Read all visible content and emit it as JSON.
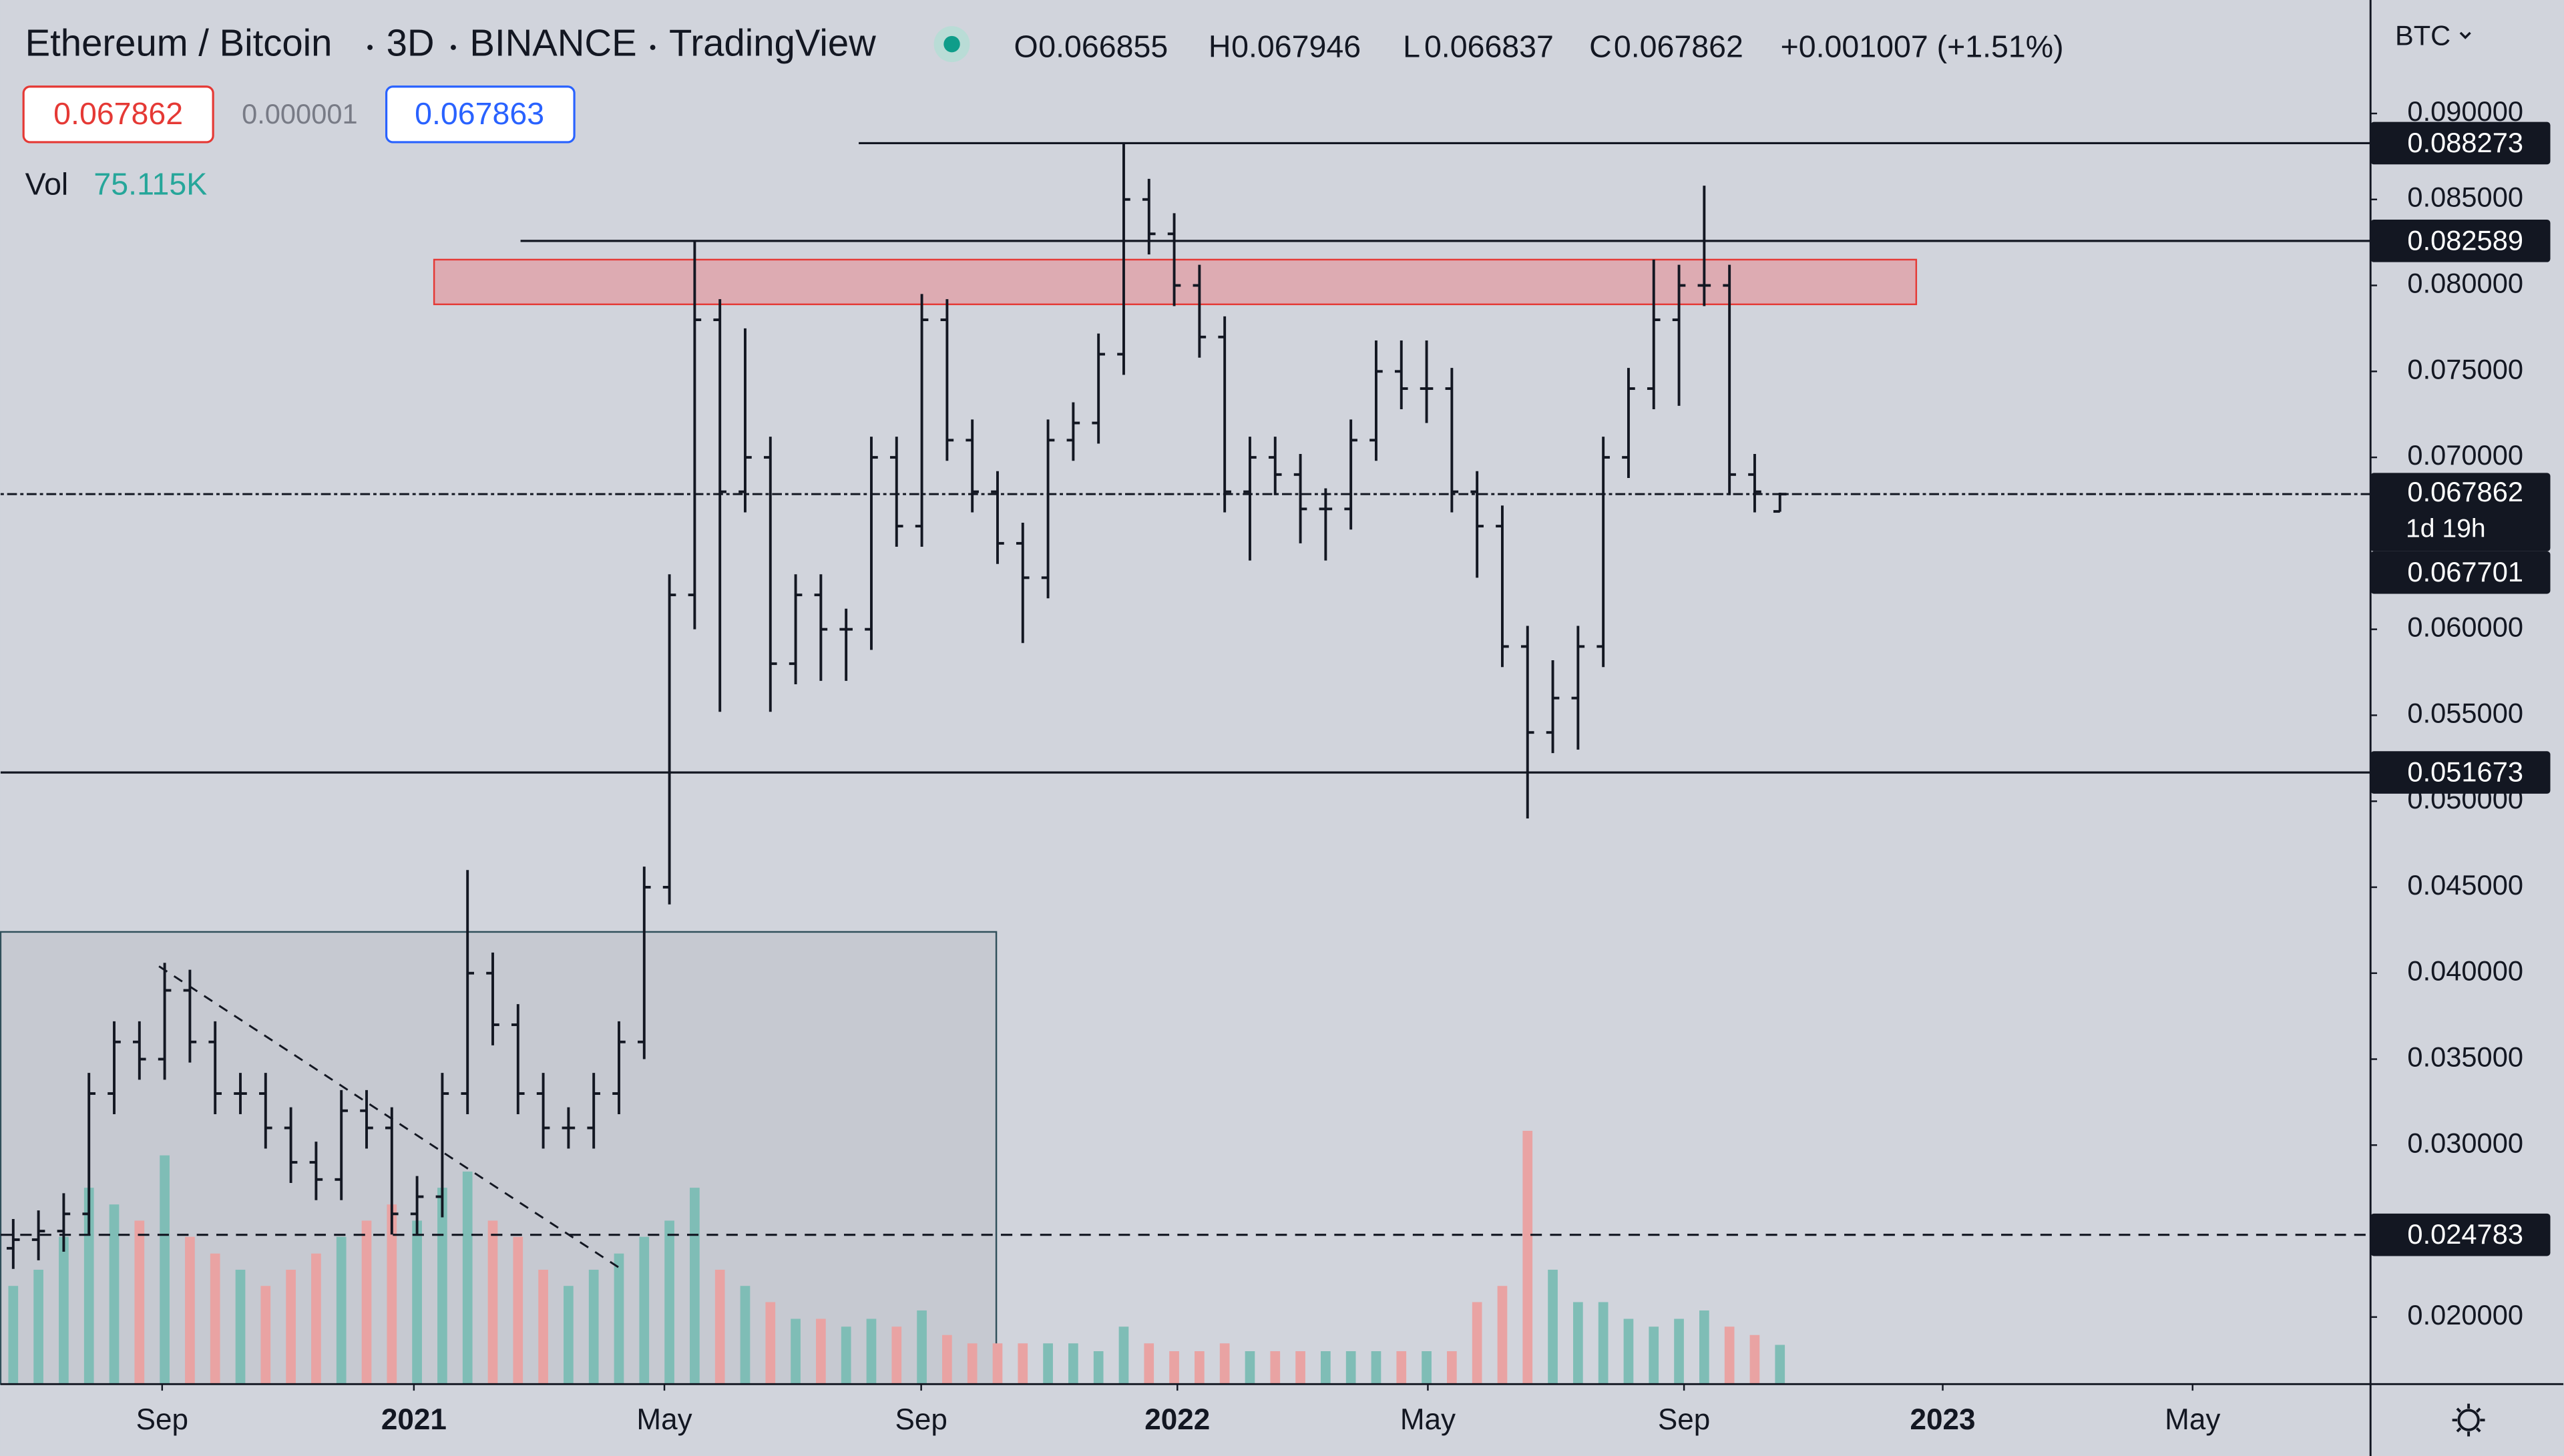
{
  "chart_data": {
    "type": "ohlc",
    "title": "Ethereum / Bitcoin",
    "interval": "3D",
    "exchange": "BINANCE",
    "source": "TradingView",
    "currency": "BTC",
    "ohlc_labels": [
      "O",
      "H",
      "L",
      "C"
    ],
    "change": "+0.001007 (+1.51%)",
    "ask": 0.067863,
    "spread": 1e-06,
    "volume_title": "Vol",
    "volume_value_label": "75.115K",
    "bar_color": "#131722",
    "up_color": "#7fbdb6",
    "down_color": "#e9a3a3",
    "xlim": [
      0,
      375.6
    ],
    "ylim": [
      0.0161,
      0.0966
    ],
    "xticks": [
      {
        "value": 25.6,
        "label": "Sep"
      },
      {
        "value": 65.5,
        "label": "2021"
      },
      {
        "value": 105.2,
        "label": "May"
      },
      {
        "value": 145.9,
        "label": "Sep"
      },
      {
        "value": 186.5,
        "label": "2022"
      },
      {
        "value": 226.2,
        "label": "May"
      },
      {
        "value": 266.8,
        "label": "Sep"
      },
      {
        "value": 307.8,
        "label": "2023"
      },
      {
        "value": 347.4,
        "label": "May"
      }
    ],
    "yticks": [
      {
        "value": 0.02,
        "label": "0.020000"
      },
      {
        "value": 0.03,
        "label": "0.030000"
      },
      {
        "value": 0.035,
        "label": "0.035000"
      },
      {
        "value": 0.04,
        "label": "0.040000"
      },
      {
        "value": 0.045,
        "label": "0.045000"
      },
      {
        "value": 0.05,
        "label": "0.050000"
      },
      {
        "value": 0.055,
        "label": "0.055000"
      },
      {
        "value": 0.06,
        "label": "0.060000"
      },
      {
        "value": 0.07,
        "label": "0.070000"
      },
      {
        "value": 0.075,
        "label": "0.075000"
      },
      {
        "value": 0.08,
        "label": "0.080000"
      },
      {
        "value": 0.085,
        "label": "0.085000"
      },
      {
        "value": 0.09,
        "label": "0.090000"
      }
    ],
    "x": [
      2,
      6,
      10,
      14,
      18,
      22,
      26,
      30,
      34,
      38,
      42,
      46,
      50,
      54,
      58,
      62,
      66,
      70,
      74,
      78,
      82,
      86,
      90,
      94,
      98,
      102,
      106,
      110,
      114,
      118,
      122,
      126,
      130,
      134,
      138,
      142,
      146,
      150,
      154,
      158,
      162,
      166,
      170,
      174,
      178,
      182,
      186,
      190,
      194,
      198,
      202,
      206,
      210,
      214,
      218,
      222,
      226,
      230,
      234,
      238,
      242,
      246,
      250,
      254,
      258,
      262,
      266,
      270,
      274,
      278,
      282
    ],
    "open": [
      0.024,
      0.0245,
      0.025,
      0.026,
      0.033,
      0.036,
      0.035,
      0.039,
      0.036,
      0.033,
      0.033,
      0.031,
      0.029,
      0.028,
      0.032,
      0.031,
      0.026,
      0.027,
      0.033,
      0.04,
      0.037,
      0.033,
      0.031,
      0.031,
      0.033,
      0.036,
      0.045,
      0.062,
      0.078,
      0.068,
      0.07,
      0.058,
      0.062,
      0.06,
      0.06,
      0.07,
      0.066,
      0.078,
      0.071,
      0.068,
      0.065,
      0.063,
      0.071,
      0.072,
      0.076,
      0.085,
      0.083,
      0.08,
      0.077,
      0.068,
      0.07,
      0.069,
      0.067,
      0.067,
      0.071,
      0.075,
      0.074,
      0.074,
      0.068,
      0.066,
      0.059,
      0.054,
      0.056,
      0.059,
      0.07,
      0.074,
      0.078,
      0.08,
      0.08,
      0.069,
      0.066855
    ],
    "high": [
      0.0257,
      0.0262,
      0.0272,
      0.0342,
      0.0372,
      0.0372,
      0.0406,
      0.0402,
      0.0372,
      0.0342,
      0.0342,
      0.0322,
      0.0302,
      0.0332,
      0.0332,
      0.0322,
      0.0282,
      0.0342,
      0.046,
      0.0412,
      0.0382,
      0.0342,
      0.0322,
      0.0342,
      0.0372,
      0.0462,
      0.0632,
      0.0826,
      0.0792,
      0.0775,
      0.0712,
      0.0632,
      0.0632,
      0.0612,
      0.0712,
      0.0712,
      0.0795,
      0.0792,
      0.0722,
      0.0692,
      0.0662,
      0.0722,
      0.0732,
      0.0772,
      0.0883,
      0.0862,
      0.0842,
      0.0812,
      0.0782,
      0.0712,
      0.0712,
      0.0702,
      0.0682,
      0.0722,
      0.0768,
      0.0768,
      0.0768,
      0.0752,
      0.0692,
      0.0672,
      0.0602,
      0.0582,
      0.0602,
      0.0712,
      0.0752,
      0.0815,
      0.0812,
      0.0858,
      0.0812,
      0.0702,
      0.067946
    ],
    "low": [
      0.0228,
      0.0233,
      0.0238,
      0.0248,
      0.0318,
      0.0338,
      0.0338,
      0.0348,
      0.0318,
      0.0318,
      0.0298,
      0.0278,
      0.0268,
      0.0268,
      0.0298,
      0.0248,
      0.0248,
      0.0258,
      0.0318,
      0.0358,
      0.0318,
      0.0298,
      0.0298,
      0.0298,
      0.0318,
      0.035,
      0.044,
      0.06,
      0.0552,
      0.0668,
      0.0552,
      0.0568,
      0.057,
      0.057,
      0.0588,
      0.0648,
      0.0648,
      0.0698,
      0.0668,
      0.0638,
      0.0592,
      0.0618,
      0.0698,
      0.0708,
      0.0748,
      0.0818,
      0.0788,
      0.0758,
      0.0668,
      0.064,
      0.0678,
      0.065,
      0.064,
      0.0658,
      0.0698,
      0.0728,
      0.072,
      0.0668,
      0.063,
      0.0578,
      0.049,
      0.0528,
      0.053,
      0.0578,
      0.0688,
      0.0728,
      0.073,
      0.0788,
      0.0678,
      0.0668,
      0.066837
    ],
    "close": [
      0.0245,
      0.025,
      0.026,
      0.033,
      0.036,
      0.035,
      0.039,
      0.036,
      0.033,
      0.033,
      0.031,
      0.029,
      0.028,
      0.032,
      0.031,
      0.026,
      0.027,
      0.033,
      0.04,
      0.037,
      0.033,
      0.031,
      0.031,
      0.033,
      0.036,
      0.045,
      0.062,
      0.078,
      0.068,
      0.07,
      0.058,
      0.062,
      0.06,
      0.06,
      0.07,
      0.066,
      0.078,
      0.071,
      0.068,
      0.065,
      0.063,
      0.071,
      0.072,
      0.076,
      0.085,
      0.083,
      0.08,
      0.077,
      0.068,
      0.07,
      0.069,
      0.067,
      0.067,
      0.071,
      0.075,
      0.074,
      0.074,
      0.068,
      0.066,
      0.059,
      0.054,
      0.056,
      0.059,
      0.07,
      0.074,
      0.078,
      0.08,
      0.08,
      0.069,
      0.068,
      0.067862
    ],
    "volume": [
      188,
      219,
      282,
      376,
      344,
      313,
      438,
      282,
      250,
      219,
      188,
      219,
      250,
      282,
      313,
      344,
      313,
      376,
      407,
      313,
      282,
      219,
      188,
      219,
      250,
      282,
      313,
      376,
      219,
      188,
      157,
      125,
      125,
      110,
      125,
      110,
      141,
      94,
      78,
      78,
      78,
      78,
      78,
      63,
      110,
      78,
      63,
      63,
      78,
      63,
      63,
      63,
      63,
      63,
      63,
      63,
      63,
      63,
      157,
      188,
      485,
      219,
      157,
      157,
      125,
      110,
      125,
      141,
      110,
      94,
      75.115
    ],
    "levels": [
      {
        "value": 0.088273,
        "x_start": 136,
        "style": "solid"
      },
      {
        "value": 0.082589,
        "x_start": 82.4,
        "style": "solid"
      },
      {
        "value": 0.051673,
        "x_start": 0,
        "style": "solid"
      },
      {
        "value": 0.024783,
        "x_start": 0,
        "style": "dashed"
      }
    ],
    "countdown": "1d 19h",
    "extra_price_label": 0.067701,
    "zone": {
      "x": [
        68.7,
        303.6
      ],
      "y": [
        0.0789,
        0.0815
      ],
      "color": "#e8888f"
    },
    "range_box": {
      "x": [
        0,
        157.8
      ],
      "y": [
        0.0161,
        0.0424
      ]
    },
    "trend_line": {
      "x": [
        25.1,
        97.9
      ],
      "y": [
        0.0404,
        0.0229
      ]
    }
  }
}
